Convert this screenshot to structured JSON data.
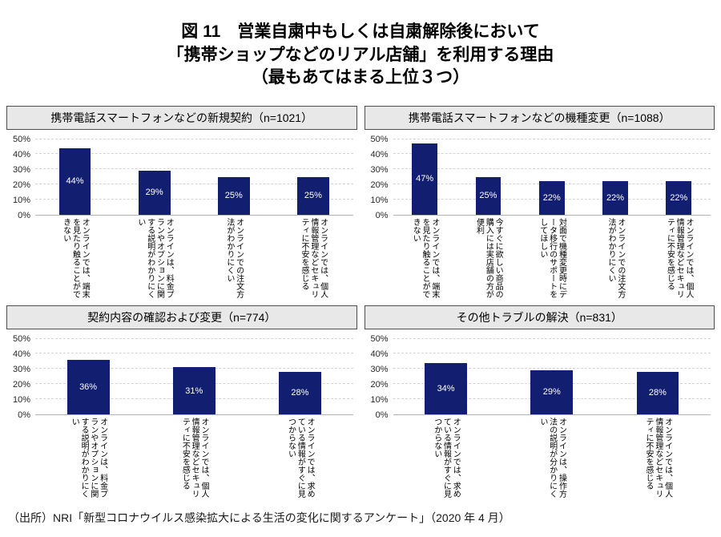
{
  "title": {
    "line1": "図 11　営業自粛中もしくは自粛解除後において",
    "line2": "「携帯ショップなどのリアル店舗」を利用する理由",
    "line3": "（最もあてはまる上位３つ）"
  },
  "source": "（出所）NRI「新型コロナウイルス感染拡大による生活の変化に関するアンケート」（2020 年 4 月）",
  "colors": {
    "bar": "#121E70",
    "bar_value_label": "#FFFFFF",
    "panel_header_bg": "#E8E8E8",
    "panel_header_border": "#4D4D4D",
    "gridline": "#D4D4D4",
    "axis_line": "#B3B3B3"
  },
  "y_axis": {
    "max": 50,
    "ticks": [
      "50%",
      "40%",
      "30%",
      "20%",
      "10%",
      "0%"
    ],
    "grid": "dashed horizontal every 10%"
  },
  "chart_data": [
    {
      "type": "bar",
      "title": "携帯電話スマートフォンなどの新規契約（n=1021）",
      "categories": [
        "オンラインでは、端末を見たり触ることができない",
        "オンラインは、料金プランやオプションに関する説明がわかりにくい",
        "オンラインでの注文方法がわかりにくい",
        "オンラインでは、個人情報管理などセキュリティに不安を感じる"
      ],
      "values": [
        44,
        29,
        25,
        25
      ],
      "value_labels": [
        "44%",
        "29%",
        "25%",
        "25%"
      ],
      "ylim": [
        0,
        50
      ],
      "legend": "none"
    },
    {
      "type": "bar",
      "title": "携帯電話スマートフォンなどの機種変更（n=1088）",
      "categories": [
        "オンラインでは、端末を見たり触ることができない",
        "今すぐに欲しい商品の購入には実店舗の方が便利",
        "対面で機種変更時にデータ移行のサポートをしてほしい",
        "オンラインでの注文方法がわかりにくい",
        "オンラインでは、個人情報管理などセキュリティに不安を感じる"
      ],
      "values": [
        47,
        25,
        22,
        22,
        22
      ],
      "value_labels": [
        "47%",
        "25%",
        "22%",
        "22%",
        "22%"
      ],
      "ylim": [
        0,
        50
      ],
      "legend": "none"
    },
    {
      "type": "bar",
      "title": "契約内容の確認および変更（n=774）",
      "categories": [
        "オンラインは、料金プランやオプションに関する説明がわかりにくい",
        "オンラインでは、個人情報管理などセキュリティに不安を感じる",
        "オンラインでは、求めている情報がすぐに見つからない"
      ],
      "values": [
        36,
        31,
        28
      ],
      "value_labels": [
        "36%",
        "31%",
        "28%"
      ],
      "ylim": [
        0,
        50
      ],
      "legend": "none"
    },
    {
      "type": "bar",
      "title": "その他トラブルの解決（n=831）",
      "categories": [
        "オンラインでは、求めている情報がすぐに見つからない",
        "オンラインは、操作方法の説明が分かりにくい",
        "オンラインでは、個人情報管理などセキュリティに不安を感じる"
      ],
      "values": [
        34,
        29,
        28
      ],
      "value_labels": [
        "34%",
        "29%",
        "28%"
      ],
      "ylim": [
        0,
        50
      ],
      "legend": "none"
    }
  ]
}
